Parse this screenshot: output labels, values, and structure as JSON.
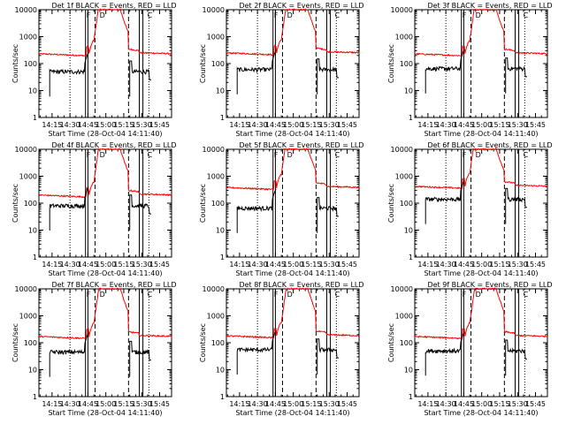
{
  "chart_data": {
    "type": "line",
    "layout": "3x3 grid of panels",
    "y_scale": "log",
    "ylim": [
      1,
      10000
    ],
    "y_tick_labels": [
      "1",
      "10",
      "100",
      "1000",
      "10000"
    ],
    "ylabel": "Counts/sec",
    "xlabel": "Start Time (28-Oct-04 14:11:40)",
    "x_tick_labels": [
      "14:15",
      "14:30",
      "14:45",
      "15:00",
      "15:15",
      "15:30",
      "15:45"
    ],
    "x_ticks_min": [
      15,
      30,
      45,
      60,
      75,
      90,
      105
    ],
    "xlim_min": [
      4,
      115
    ],
    "legend": "BLACK = Events, RED = LLD",
    "colors": {
      "events": "#000000",
      "lld": "#ff0000"
    },
    "markers": {
      "dotted": [
        30,
        96
      ],
      "solid": [
        43,
        45,
        88,
        91
      ],
      "dashed": [
        51,
        79
      ],
      "letters": [
        {
          "t": 43,
          "label": "F"
        },
        {
          "t": 54,
          "label": "D"
        },
        {
          "t": 94,
          "label": "C"
        }
      ]
    },
    "panels": [
      {
        "title": "Det 1f BLACK = Events, RED = LLD",
        "lld_baseline": 230,
        "events_baseline": 50
      },
      {
        "title": "Det 2f BLACK = Events, RED = LLD",
        "lld_baseline": 250,
        "events_baseline": 60
      },
      {
        "title": "Det 3f BLACK = Events, RED = LLD",
        "lld_baseline": 230,
        "events_baseline": 65
      },
      {
        "title": "Det 4f BLACK = Events, RED = LLD",
        "lld_baseline": 200,
        "events_baseline": 80
      },
      {
        "title": "Det 5f BLACK = Events, RED = LLD",
        "lld_baseline": 380,
        "events_baseline": 65
      },
      {
        "title": "Det 6f BLACK = Events, RED = LLD",
        "lld_baseline": 420,
        "events_baseline": 140
      },
      {
        "title": "Det 7f BLACK = Events, RED = LLD",
        "lld_baseline": 170,
        "events_baseline": 45
      },
      {
        "title": "Det 8f BLACK = Events, RED = LLD",
        "lld_baseline": 180,
        "events_baseline": 55
      },
      {
        "title": "Det 9f BLACK = Events, RED = LLD",
        "lld_baseline": 170,
        "events_baseline": 50
      }
    ]
  }
}
